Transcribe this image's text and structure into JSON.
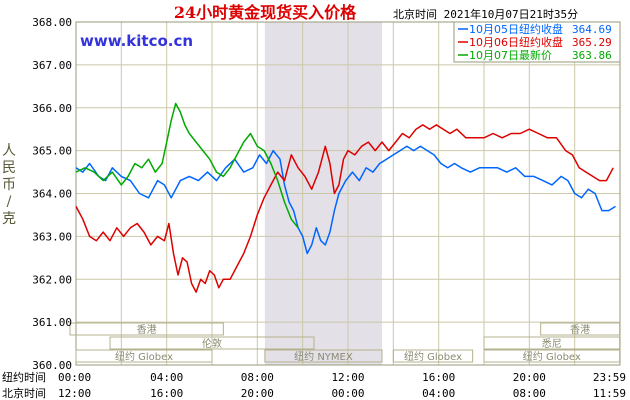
{
  "chart_data": {
    "type": "line",
    "title": "24小时黄金现货买入价格",
    "timestamp": "北京时间  2021年10月07日21时35分",
    "watermark": "www.kitco.cn",
    "ylabel_chars": [
      "人",
      "民",
      "币",
      "/",
      "克"
    ],
    "ylim": [
      360,
      368
    ],
    "y_ticks": [
      "360.00",
      "361.00",
      "362.00",
      "363.00",
      "364.00",
      "365.00",
      "366.00",
      "367.00",
      "368.00"
    ],
    "grid": true,
    "legend_position": "top-right",
    "x_tick_labels": [
      "00:00",
      "04:00",
      "08:00",
      "12:00",
      "16:00",
      "20:00",
      "23:59"
    ],
    "x_row1_label": "纽约时间",
    "x_row2_label": "北京时间",
    "x_row2_ticks": [
      "12:00",
      "16:00",
      "20:00",
      "00:00",
      "04:00",
      "08:00",
      "11:59"
    ],
    "sessions": [
      {
        "label": "香港",
        "row": 1,
        "start": "-0:30",
        "end": "6:30"
      },
      {
        "label": "香港",
        "row": 1,
        "start": "20:30",
        "end": "23:59"
      },
      {
        "label": "伦敦",
        "row": 2,
        "start": "1:30",
        "end": "10:30"
      },
      {
        "label": "悉尼",
        "row": 2,
        "start": "18:00",
        "end": "23:59"
      },
      {
        "label": "纽约 Globex",
        "row": 3,
        "start": "0:00",
        "end": "6:00"
      },
      {
        "label": "纽约 NYMEX",
        "row": 3,
        "start": "8:20",
        "end": "13:30"
      },
      {
        "label": "纽约 Globex",
        "row": 3,
        "start": "14:00",
        "end": "17:30"
      },
      {
        "label": "纽约 Globex",
        "row": 3,
        "start": "18:00",
        "end": "23:59"
      }
    ],
    "series": [
      {
        "name": "10月05日",
        "label": "纽约收盘",
        "value": "364.69",
        "color": "#0066ff",
        "points": [
          [
            0,
            364.6
          ],
          [
            0.3,
            364.5
          ],
          [
            0.6,
            364.7
          ],
          [
            1.0,
            364.4
          ],
          [
            1.3,
            364.3
          ],
          [
            1.6,
            364.6
          ],
          [
            2.0,
            364.4
          ],
          [
            2.4,
            364.3
          ],
          [
            2.8,
            364.0
          ],
          [
            3.2,
            363.9
          ],
          [
            3.6,
            364.3
          ],
          [
            3.9,
            364.2
          ],
          [
            4.2,
            363.9
          ],
          [
            4.6,
            364.3
          ],
          [
            5.0,
            364.4
          ],
          [
            5.4,
            364.3
          ],
          [
            5.8,
            364.5
          ],
          [
            6.2,
            364.3
          ],
          [
            6.6,
            364.6
          ],
          [
            7.0,
            364.8
          ],
          [
            7.4,
            364.5
          ],
          [
            7.8,
            364.6
          ],
          [
            8.1,
            364.9
          ],
          [
            8.4,
            364.7
          ],
          [
            8.7,
            365.0
          ],
          [
            9.0,
            364.8
          ],
          [
            9.2,
            364.2
          ],
          [
            9.4,
            363.8
          ],
          [
            9.6,
            363.6
          ],
          [
            9.8,
            363.2
          ],
          [
            10.0,
            363.0
          ],
          [
            10.2,
            362.6
          ],
          [
            10.4,
            362.8
          ],
          [
            10.6,
            363.2
          ],
          [
            10.8,
            362.9
          ],
          [
            11.0,
            362.8
          ],
          [
            11.2,
            363.1
          ],
          [
            11.4,
            363.6
          ],
          [
            11.6,
            364.0
          ],
          [
            11.9,
            364.3
          ],
          [
            12.2,
            364.5
          ],
          [
            12.5,
            364.3
          ],
          [
            12.8,
            364.6
          ],
          [
            13.1,
            364.5
          ],
          [
            13.4,
            364.7
          ],
          [
            13.7,
            364.8
          ],
          [
            14.0,
            364.9
          ],
          [
            14.3,
            365.0
          ],
          [
            14.6,
            365.1
          ],
          [
            14.9,
            365.0
          ],
          [
            15.2,
            365.1
          ],
          [
            15.5,
            365.0
          ],
          [
            15.8,
            364.9
          ],
          [
            16.1,
            364.7
          ],
          [
            16.4,
            364.6
          ],
          [
            16.7,
            364.7
          ],
          [
            17.0,
            364.6
          ],
          [
            17.4,
            364.5
          ],
          [
            17.8,
            364.6
          ],
          [
            18.2,
            364.6
          ],
          [
            18.6,
            364.6
          ],
          [
            19.0,
            364.5
          ],
          [
            19.4,
            364.6
          ],
          [
            19.8,
            364.4
          ],
          [
            20.2,
            364.4
          ],
          [
            20.6,
            364.3
          ],
          [
            21.0,
            364.2
          ],
          [
            21.4,
            364.4
          ],
          [
            21.7,
            364.3
          ],
          [
            22.0,
            364.0
          ],
          [
            22.3,
            363.9
          ],
          [
            22.6,
            364.1
          ],
          [
            22.9,
            364.0
          ],
          [
            23.2,
            363.6
          ],
          [
            23.5,
            363.6
          ],
          [
            23.8,
            363.7
          ]
        ]
      },
      {
        "name": "10月06日",
        "label": "纽约收盘",
        "value": "365.29",
        "color": "#dd0000",
        "points": [
          [
            0,
            363.7
          ],
          [
            0.3,
            363.4
          ],
          [
            0.6,
            363.0
          ],
          [
            0.9,
            362.9
          ],
          [
            1.2,
            363.1
          ],
          [
            1.5,
            362.9
          ],
          [
            1.8,
            363.2
          ],
          [
            2.1,
            363.0
          ],
          [
            2.4,
            363.2
          ],
          [
            2.7,
            363.3
          ],
          [
            3.0,
            363.1
          ],
          [
            3.3,
            362.8
          ],
          [
            3.6,
            363.0
          ],
          [
            3.9,
            362.9
          ],
          [
            4.1,
            363.3
          ],
          [
            4.3,
            362.6
          ],
          [
            4.5,
            362.1
          ],
          [
            4.7,
            362.5
          ],
          [
            4.9,
            362.4
          ],
          [
            5.1,
            361.9
          ],
          [
            5.3,
            361.7
          ],
          [
            5.5,
            362.0
          ],
          [
            5.7,
            361.9
          ],
          [
            5.9,
            362.2
          ],
          [
            6.1,
            362.1
          ],
          [
            6.3,
            361.8
          ],
          [
            6.5,
            362.0
          ],
          [
            6.8,
            362.0
          ],
          [
            7.1,
            362.3
          ],
          [
            7.4,
            362.6
          ],
          [
            7.7,
            363.0
          ],
          [
            8.0,
            363.5
          ],
          [
            8.3,
            363.9
          ],
          [
            8.6,
            364.2
          ],
          [
            8.9,
            364.5
          ],
          [
            9.2,
            364.3
          ],
          [
            9.5,
            364.9
          ],
          [
            9.8,
            364.6
          ],
          [
            10.1,
            364.4
          ],
          [
            10.4,
            364.1
          ],
          [
            10.7,
            364.5
          ],
          [
            11.0,
            365.1
          ],
          [
            11.2,
            364.7
          ],
          [
            11.4,
            364.0
          ],
          [
            11.6,
            364.2
          ],
          [
            11.8,
            364.8
          ],
          [
            12.0,
            365.0
          ],
          [
            12.3,
            364.9
          ],
          [
            12.6,
            365.1
          ],
          [
            12.9,
            365.2
          ],
          [
            13.2,
            365.0
          ],
          [
            13.5,
            365.2
          ],
          [
            13.8,
            365.0
          ],
          [
            14.1,
            365.2
          ],
          [
            14.4,
            365.4
          ],
          [
            14.7,
            365.3
          ],
          [
            15.0,
            365.5
          ],
          [
            15.3,
            365.6
          ],
          [
            15.6,
            365.5
          ],
          [
            15.9,
            365.6
          ],
          [
            16.2,
            365.5
          ],
          [
            16.5,
            365.4
          ],
          [
            16.8,
            365.5
          ],
          [
            17.2,
            365.3
          ],
          [
            17.6,
            365.3
          ],
          [
            18.0,
            365.3
          ],
          [
            18.4,
            365.4
          ],
          [
            18.8,
            365.3
          ],
          [
            19.2,
            365.4
          ],
          [
            19.6,
            365.4
          ],
          [
            20.0,
            365.5
          ],
          [
            20.4,
            365.4
          ],
          [
            20.8,
            365.3
          ],
          [
            21.2,
            365.3
          ],
          [
            21.6,
            365.0
          ],
          [
            21.9,
            364.9
          ],
          [
            22.2,
            364.6
          ],
          [
            22.5,
            364.5
          ],
          [
            22.8,
            364.4
          ],
          [
            23.1,
            364.3
          ],
          [
            23.4,
            364.3
          ],
          [
            23.7,
            364.6
          ]
        ]
      },
      {
        "name": "10月07日",
        "label": "最新价",
        "value": "363.86",
        "color": "#00aa00",
        "points": [
          [
            0,
            364.5
          ],
          [
            0.4,
            364.6
          ],
          [
            0.8,
            364.5
          ],
          [
            1.2,
            364.3
          ],
          [
            1.6,
            364.5
          ],
          [
            2.0,
            364.2
          ],
          [
            2.3,
            364.4
          ],
          [
            2.6,
            364.7
          ],
          [
            2.9,
            364.6
          ],
          [
            3.2,
            364.8
          ],
          [
            3.5,
            364.5
          ],
          [
            3.8,
            364.7
          ],
          [
            4.0,
            365.2
          ],
          [
            4.2,
            365.7
          ],
          [
            4.4,
            366.1
          ],
          [
            4.6,
            365.9
          ],
          [
            4.8,
            365.6
          ],
          [
            5.0,
            365.4
          ],
          [
            5.3,
            365.2
          ],
          [
            5.6,
            365.0
          ],
          [
            5.9,
            364.8
          ],
          [
            6.2,
            364.5
          ],
          [
            6.5,
            364.4
          ],
          [
            6.8,
            364.6
          ],
          [
            7.1,
            364.9
          ],
          [
            7.4,
            365.2
          ],
          [
            7.7,
            365.4
          ],
          [
            8.0,
            365.1
          ],
          [
            8.3,
            365.0
          ],
          [
            8.6,
            364.7
          ],
          [
            8.9,
            364.3
          ],
          [
            9.2,
            363.8
          ],
          [
            9.5,
            363.4
          ],
          [
            9.8,
            363.2
          ]
        ]
      }
    ]
  }
}
